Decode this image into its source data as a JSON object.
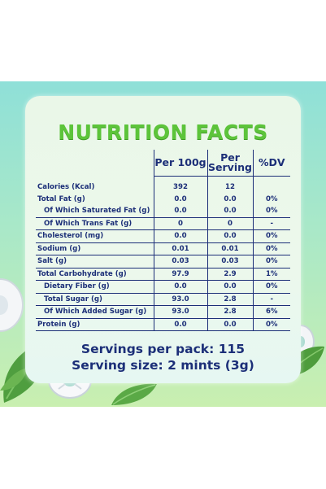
{
  "title": "NUTRITION FACTS",
  "columns": [
    "Per 100g",
    "Per\nServing",
    "%DV"
  ],
  "rows": [
    {
      "label": "Calories (Kcal)",
      "per100": "392",
      "serving": "12",
      "dv": ""
    },
    {
      "label": "Total Fat (g)",
      "per100": "0.0",
      "serving": "0.0",
      "dv": "0%"
    },
    {
      "label": "Of Which Saturated Fat (g)",
      "per100": "0.0",
      "serving": "0.0",
      "dv": "0%"
    },
    {
      "label": "Of Which Trans Fat (g)",
      "per100": "0",
      "serving": "0",
      "dv": "-"
    },
    {
      "label": "Cholesterol (mg)",
      "per100": "0.0",
      "serving": "0.0",
      "dv": "0%"
    },
    {
      "label": "Sodium (g)",
      "per100": "0.01",
      "serving": "0.01",
      "dv": "0%"
    },
    {
      "label": "Salt (g)",
      "per100": "0.03",
      "serving": "0.03",
      "dv": "0%"
    },
    {
      "label": "Total Carbohydrate (g)",
      "per100": "97.9",
      "serving": "2.9",
      "dv": "1%"
    },
    {
      "label": "Dietary Fiber (g)",
      "per100": "0.0",
      "serving": "0.0",
      "dv": "0%"
    },
    {
      "label": "Total Sugar (g)",
      "per100": "93.0",
      "serving": "2.8",
      "dv": "-"
    },
    {
      "label": "Of Which Added Sugar (g)",
      "per100": "93.0",
      "serving": "2.8",
      "dv": "6%"
    },
    {
      "label": "Protein (g)",
      "per100": "0.0",
      "serving": "0.0",
      "dv": "0%"
    }
  ],
  "servings_per_pack": "Servings per pack: 115",
  "serving_size": "Serving size: 2 mints (3g)",
  "colors": {
    "title": "#5cc43a",
    "text": "#1c2f78",
    "banner": "#8fe0d8"
  }
}
